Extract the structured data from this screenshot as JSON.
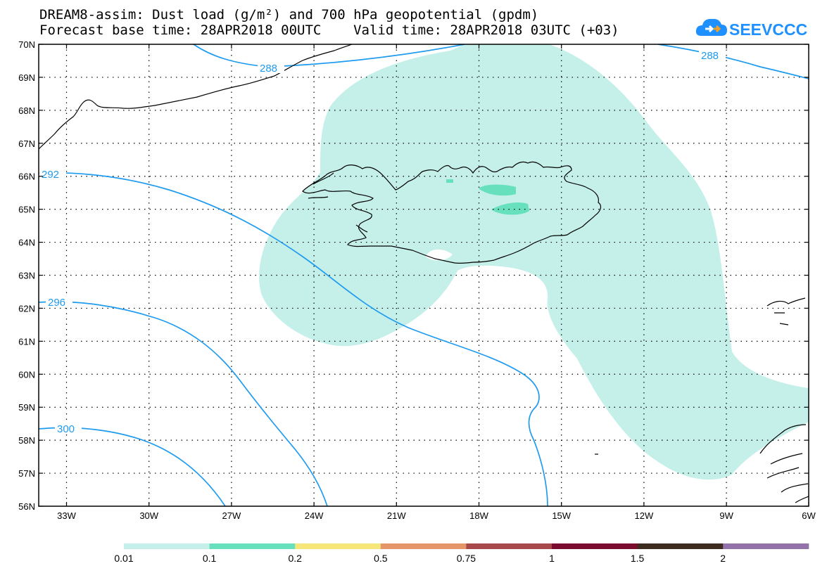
{
  "title": {
    "line1": "DREAM8-assim: Dust load (g/m²) and 700 hPa geopotential (gpdm)",
    "line2": "Forecast base time: 28APR2018 00UTC    Valid time: 28APR2018 03UTC (+03)"
  },
  "logo": {
    "text": "SEEVCCC",
    "icon": "cloud-logo-icon",
    "color": "#1e90ff"
  },
  "map": {
    "lat_labels": [
      "70N",
      "69N",
      "68N",
      "67N",
      "66N",
      "65N",
      "64N",
      "63N",
      "62N",
      "61N",
      "60N",
      "59N",
      "58N",
      "57N",
      "56N"
    ],
    "lon_labels": [
      "33W",
      "30W",
      "27W",
      "24W",
      "21W",
      "18W",
      "15W",
      "12W",
      "9W",
      "6W"
    ],
    "contour_labels": [
      "288",
      "288",
      "292",
      "296",
      "300"
    ],
    "contour_color": "#1e9bef",
    "dust_low_color": "#c5f0ea",
    "dust_mid_color": "#66e0bd"
  },
  "colorbar": {
    "labels": [
      "0.01",
      "0.1",
      "0.2",
      "0.5",
      "0.75",
      "1",
      "1.5",
      "2"
    ],
    "colors": [
      "#c5f0ea",
      "#66e0bd",
      "#f6e67a",
      "#e59568",
      "#a9484a",
      "#7b0c2f",
      "#3e2b1f",
      "#9272a8"
    ]
  }
}
